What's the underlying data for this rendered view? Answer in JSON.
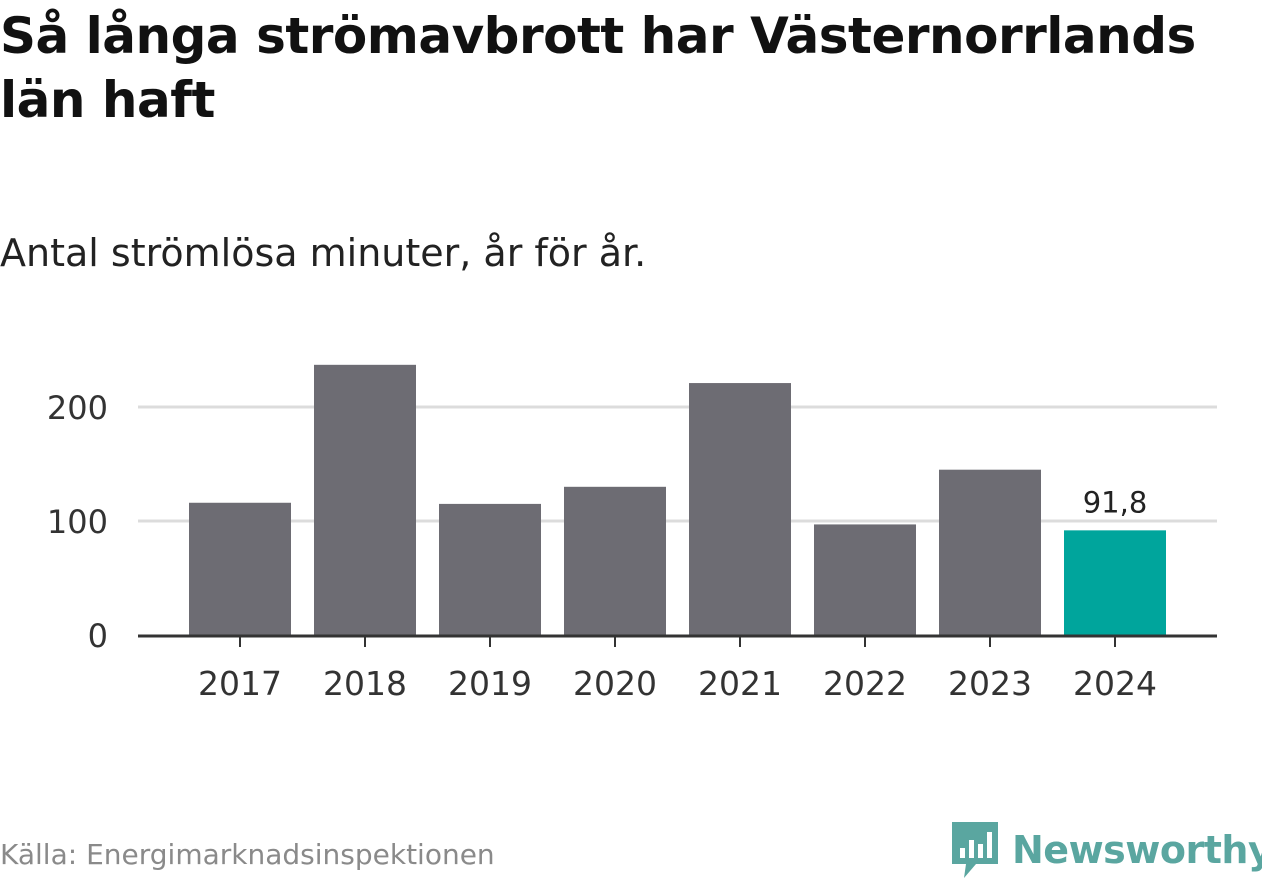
{
  "title": "Så långa strömavbrott har Västernorrlands län haft",
  "subtitle": "Antal strömlösa minuter, år för år.",
  "source": "Källa: Energimarknadsinspektionen",
  "brand": "Newsworthy",
  "colors": {
    "bar": "#6d6c73",
    "highlight": "#00a59c",
    "grid": "#dcdcdc",
    "axis": "#333333",
    "brand": "#5aa6a0"
  },
  "chart_data": {
    "type": "bar",
    "categories": [
      "2017",
      "2018",
      "2019",
      "2020",
      "2021",
      "2022",
      "2023",
      "2024"
    ],
    "values": [
      116,
      237,
      115,
      130,
      221,
      97,
      145,
      91.8
    ],
    "highlight_index": 7,
    "data_labels": [
      {
        "index": 7,
        "text": "91,8"
      }
    ],
    "yticks": [
      0,
      100,
      200
    ],
    "ytick_labels": [
      "0",
      "100",
      "200"
    ],
    "ylim": [
      0,
      240
    ],
    "title": "Så långa strömavbrott har Västernorrlands län haft",
    "xlabel": "",
    "ylabel": "",
    "grid": true
  }
}
